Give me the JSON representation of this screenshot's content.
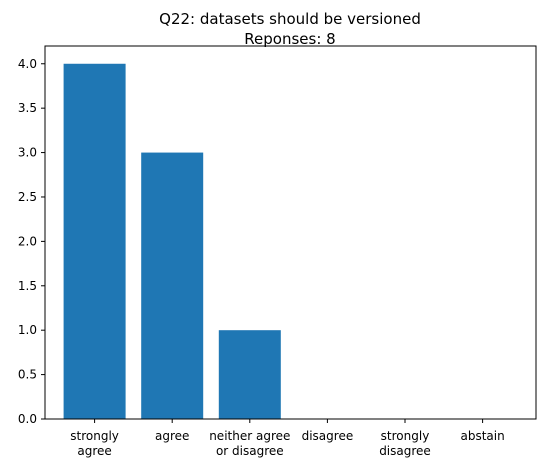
{
  "chart_data": {
    "type": "bar",
    "title": "Q22: datasets should be versioned",
    "subtitle": "Reponses: 8",
    "categories": [
      [
        "strongly",
        "agree"
      ],
      [
        "agree"
      ],
      [
        "neither agree",
        "or disagree"
      ],
      [
        "disagree"
      ],
      [
        "strongly",
        "disagree"
      ],
      [
        "abstain"
      ]
    ],
    "values": [
      4,
      3,
      1,
      0,
      0,
      0
    ],
    "yticks": [
      "0.0",
      "0.5",
      "1.0",
      "1.5",
      "2.0",
      "2.5",
      "3.0",
      "3.5",
      "4.0"
    ],
    "ylim": [
      0,
      4.2
    ],
    "xlabel": "",
    "ylabel": "",
    "grid": false,
    "colors": {
      "bar": "#1f77b4",
      "axis": "#000000",
      "text": "#000000",
      "background": "#ffffff"
    }
  }
}
